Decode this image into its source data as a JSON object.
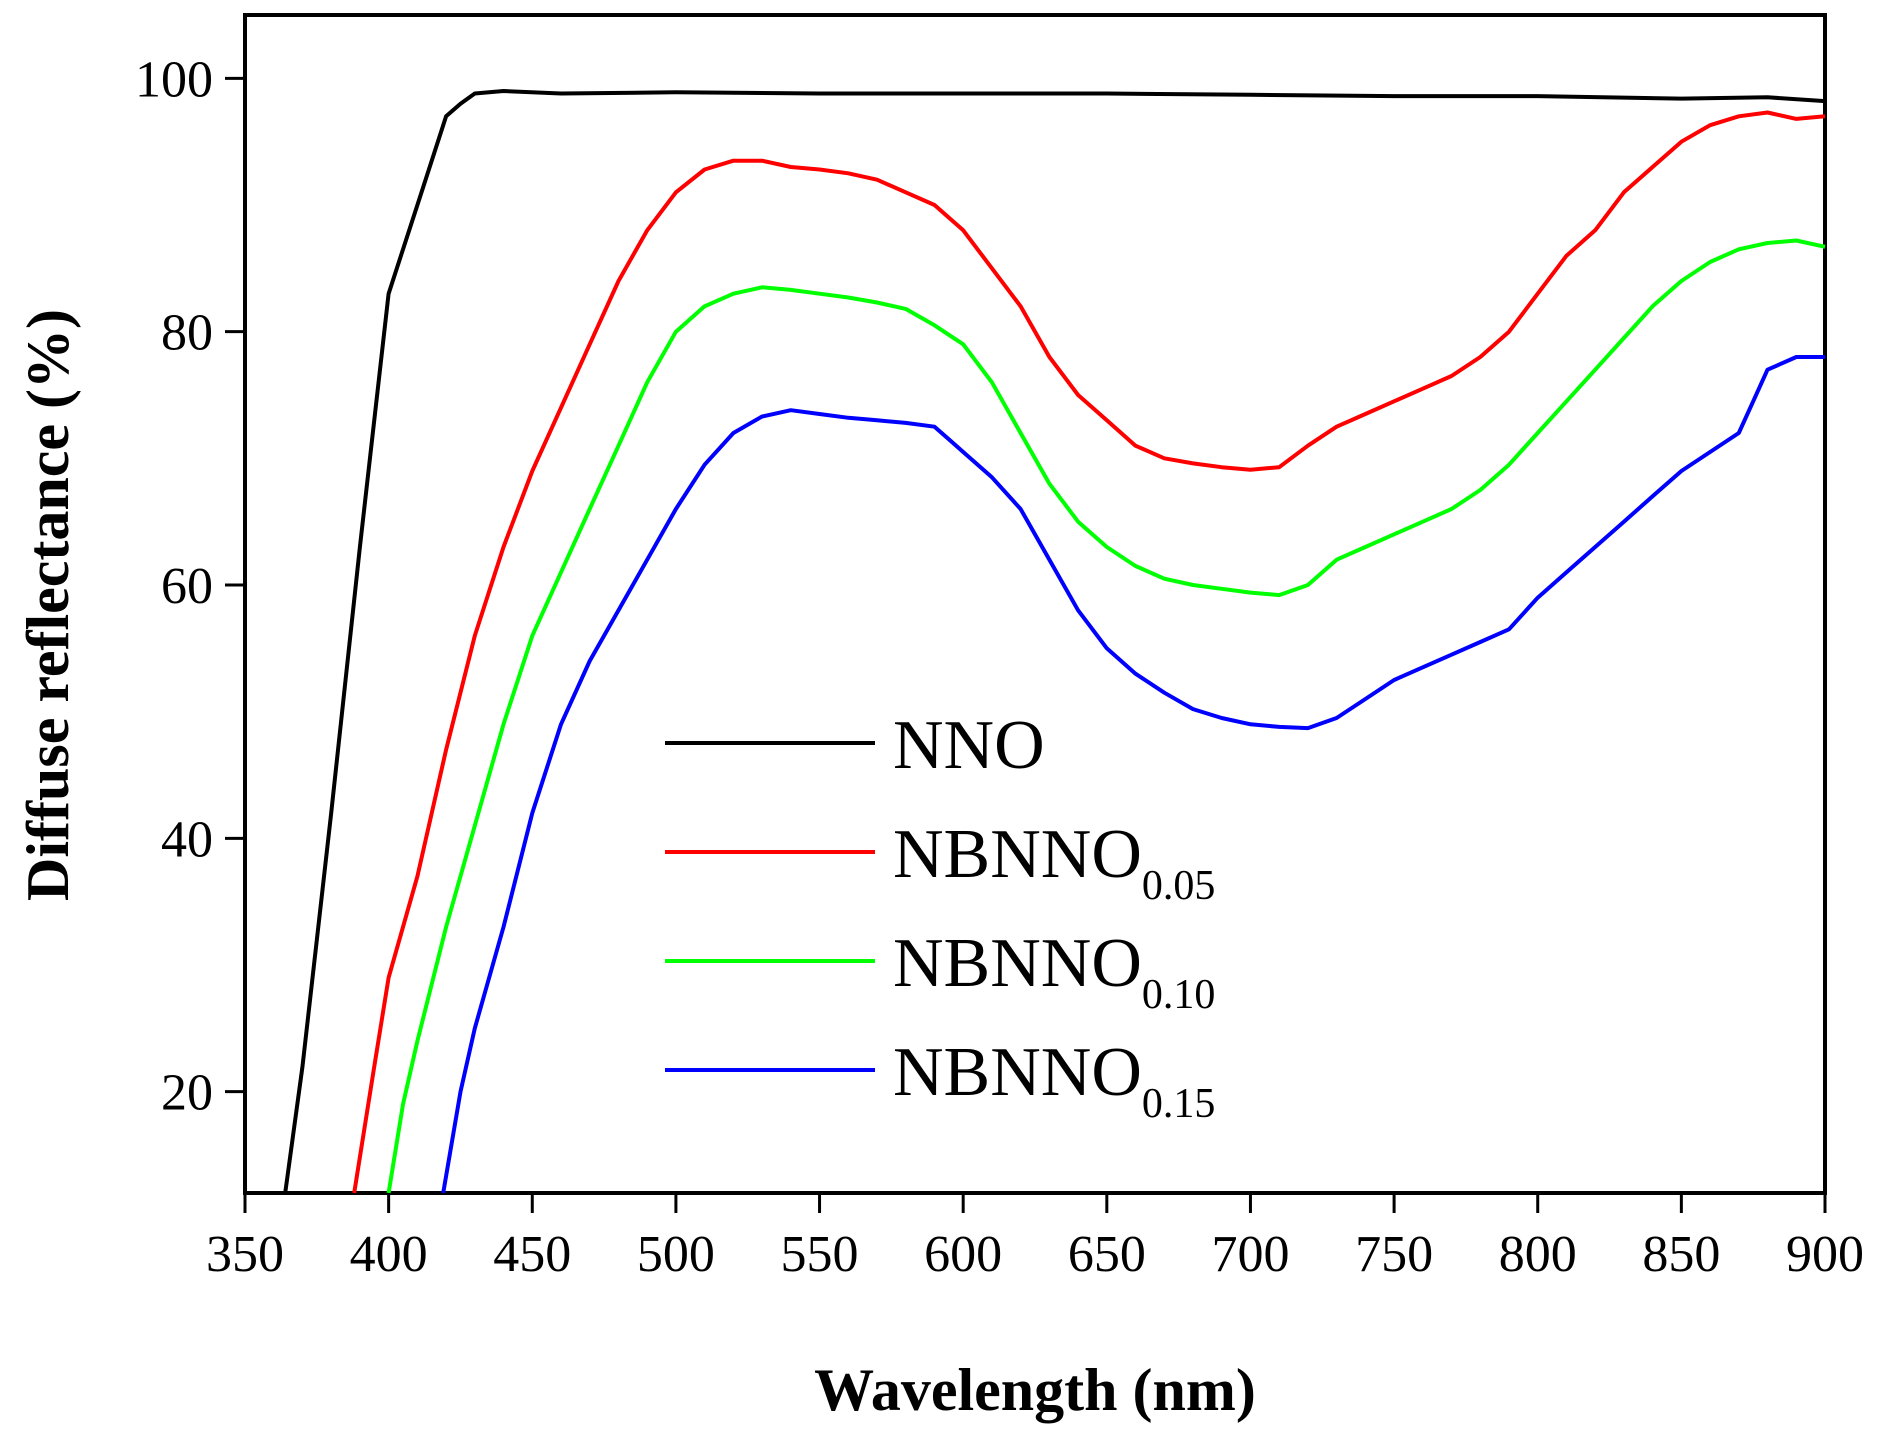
{
  "chart_data": {
    "type": "line",
    "title": "",
    "xlabel": "Wavelength (nm)",
    "ylabel": "Diffuse reflectance (%)",
    "xlim": [
      350,
      900
    ],
    "ylim": [
      12,
      105
    ],
    "xticks": [
      350,
      400,
      450,
      500,
      550,
      600,
      650,
      700,
      750,
      800,
      850,
      900
    ],
    "yticks": [
      20,
      40,
      60,
      80,
      100
    ],
    "grid": false,
    "legend_position": "bottom-center",
    "series": [
      {
        "name": "NNO",
        "base": "NNO",
        "sub": "",
        "color": "#000000",
        "x": [
          364,
          370,
          380,
          390,
          400,
          410,
          420,
          425,
          430,
          440,
          460,
          500,
          550,
          600,
          650,
          700,
          750,
          800,
          850,
          880,
          900
        ],
        "y": [
          12,
          22,
          42,
          63,
          83,
          90,
          97,
          98,
          98.8,
          99,
          98.8,
          98.9,
          98.8,
          98.8,
          98.8,
          98.7,
          98.6,
          98.6,
          98.4,
          98.5,
          98.2
        ]
      },
      {
        "name": "NBNNO0.05",
        "base": "NBNNO",
        "sub": "0.05",
        "color": "#ff0000",
        "x": [
          388,
          395,
          400,
          410,
          420,
          430,
          440,
          450,
          460,
          470,
          480,
          490,
          500,
          510,
          520,
          530,
          540,
          550,
          560,
          570,
          580,
          590,
          600,
          610,
          620,
          630,
          640,
          650,
          660,
          670,
          680,
          690,
          700,
          710,
          720,
          730,
          740,
          750,
          760,
          770,
          780,
          790,
          800,
          810,
          820,
          830,
          840,
          850,
          860,
          870,
          880,
          890,
          900
        ],
        "y": [
          12,
          22,
          29,
          37,
          47,
          56,
          63,
          69,
          74,
          79,
          84,
          88,
          91,
          92.8,
          93.5,
          93.5,
          93,
          92.8,
          92.5,
          92,
          91,
          90,
          88,
          85,
          82,
          78,
          75,
          73,
          71,
          70,
          69.6,
          69.3,
          69.1,
          69.3,
          71,
          72.5,
          73.5,
          74.5,
          75.5,
          76.5,
          78,
          80,
          83,
          86,
          88,
          91,
          93,
          95,
          96.3,
          97,
          97.3,
          96.8,
          97
        ]
      },
      {
        "name": "NBNNO0.10",
        "base": "NBNNO",
        "sub": "0.10",
        "color": "#00ff00",
        "x": [
          400,
          405,
          410,
          420,
          430,
          440,
          450,
          460,
          470,
          480,
          490,
          500,
          510,
          520,
          530,
          540,
          550,
          560,
          570,
          580,
          590,
          600,
          610,
          620,
          630,
          640,
          650,
          660,
          670,
          680,
          690,
          700,
          710,
          720,
          730,
          740,
          750,
          760,
          770,
          780,
          790,
          800,
          810,
          820,
          830,
          840,
          850,
          860,
          870,
          880,
          890,
          900
        ],
        "y": [
          12,
          19,
          24,
          33,
          41,
          49,
          56,
          61,
          66,
          71,
          76,
          80,
          82,
          83,
          83.5,
          83.3,
          83,
          82.7,
          82.3,
          81.8,
          80.5,
          79,
          76,
          72,
          68,
          65,
          63,
          61.5,
          60.5,
          60,
          59.7,
          59.4,
          59.2,
          60,
          62,
          63,
          64,
          65,
          66,
          67.5,
          69.5,
          72,
          74.5,
          77,
          79.5,
          82,
          84,
          85.5,
          86.5,
          87,
          87.2,
          86.7
        ]
      },
      {
        "name": "NBNNO0.15",
        "base": "NBNNO",
        "sub": "0.15",
        "color": "#0000ff",
        "x": [
          419,
          425,
          430,
          440,
          450,
          460,
          470,
          480,
          490,
          500,
          510,
          520,
          530,
          540,
          550,
          560,
          570,
          580,
          590,
          595,
          600,
          610,
          620,
          630,
          640,
          650,
          660,
          670,
          680,
          690,
          700,
          710,
          720,
          730,
          740,
          750,
          760,
          770,
          780,
          790,
          800,
          810,
          820,
          830,
          840,
          850,
          860,
          870,
          875,
          880,
          890,
          900
        ],
        "y": [
          12,
          20,
          25,
          33,
          42,
          49,
          54,
          58,
          62,
          66,
          69.5,
          72,
          73.3,
          73.8,
          73.5,
          73.2,
          73,
          72.8,
          72.5,
          71.5,
          70.5,
          68.5,
          66,
          62,
          58,
          55,
          53,
          51.5,
          50.2,
          49.5,
          49,
          48.8,
          48.7,
          49.5,
          51,
          52.5,
          53.5,
          54.5,
          55.5,
          56.5,
          59,
          61,
          63,
          65,
          67,
          69,
          70.5,
          72,
          74.5,
          77,
          78,
          78
        ]
      }
    ]
  }
}
